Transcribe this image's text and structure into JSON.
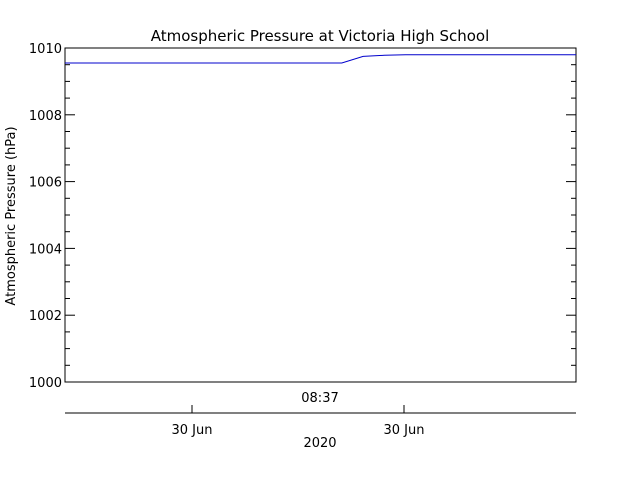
{
  "chart_data": {
    "type": "line",
    "title": "Atmospheric Pressure at Victoria High School",
    "ylabel": "Atmospheric Pressure (hPa)",
    "ylim": [
      1000,
      1010
    ],
    "y_ticks": [
      "1000",
      "1002",
      "1004",
      "1006",
      "1008",
      "1010"
    ],
    "x_top_label": "08:37",
    "x_bottom_ticks": [
      "30 Jun",
      "30 Jun"
    ],
    "x_bottom_label": "2020",
    "grid": false,
    "series": [
      {
        "color": "#0000cc",
        "points": [
          {
            "t": "08:23",
            "y": 1009.55
          },
          {
            "t": "08:24",
            "y": 1009.55
          },
          {
            "t": "08:25",
            "y": 1009.55
          },
          {
            "t": "08:26",
            "y": 1009.55
          },
          {
            "t": "08:27",
            "y": 1009.55
          },
          {
            "t": "08:28",
            "y": 1009.55
          },
          {
            "t": "08:29",
            "y": 1009.55
          },
          {
            "t": "08:30",
            "y": 1009.55
          },
          {
            "t": "08:31",
            "y": 1009.55
          },
          {
            "t": "08:32",
            "y": 1009.55
          },
          {
            "t": "08:33",
            "y": 1009.55
          },
          {
            "t": "08:34",
            "y": 1009.55
          },
          {
            "t": "08:35",
            "y": 1009.55
          },
          {
            "t": "08:36",
            "y": 1009.55
          },
          {
            "t": "08:37",
            "y": 1009.75
          },
          {
            "t": "08:38",
            "y": 1009.78
          },
          {
            "t": "08:39",
            "y": 1009.8
          },
          {
            "t": "08:40",
            "y": 1009.8
          },
          {
            "t": "08:41",
            "y": 1009.8
          },
          {
            "t": "08:42",
            "y": 1009.8
          },
          {
            "t": "08:43",
            "y": 1009.8
          },
          {
            "t": "08:44",
            "y": 1009.8
          },
          {
            "t": "08:45",
            "y": 1009.8
          },
          {
            "t": "08:46",
            "y": 1009.8
          },
          {
            "t": "08:47",
            "y": 1009.8
          }
        ]
      }
    ]
  }
}
